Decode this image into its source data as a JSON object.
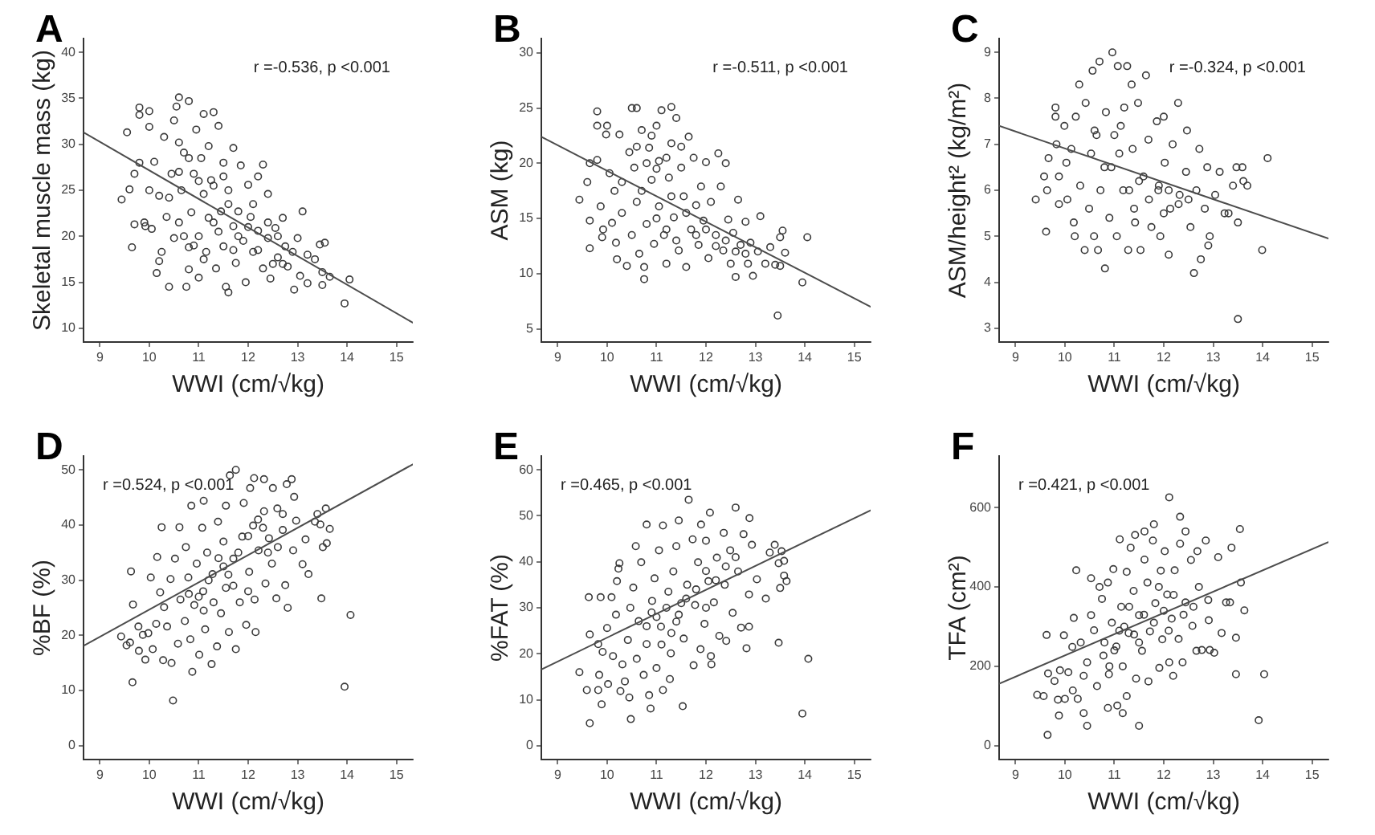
{
  "chart_data": [
    {
      "type": "scatter",
      "title": "A",
      "xlabel": "WWI (cm/√kg)",
      "ylabel": "Skeletal muscle mass (kg)",
      "annotations": [
        "r =-0.536, p <0.001"
      ],
      "xlim": [
        8.67,
        15.33
      ],
      "xticks": [
        9,
        10,
        11,
        12,
        13,
        14,
        15
      ],
      "ylim": [
        8.5,
        41.5
      ],
      "yticks": [
        10,
        15,
        20,
        25,
        30,
        35,
        40
      ],
      "marker": "circle",
      "series": [
        {
          "color": "#3a3a3a",
          "x": [
            9.44,
            9.55,
            9.6,
            9.65,
            9.7,
            9.7,
            9.8,
            9.8,
            9.8,
            9.9,
            9.92,
            10.0,
            10.0,
            10.0,
            10.05,
            10.1,
            10.15,
            10.2,
            10.25,
            10.2,
            10.3,
            10.35,
            10.4,
            10.4,
            10.45,
            10.5,
            10.5,
            10.55,
            10.6,
            10.6,
            10.6,
            10.65,
            10.7,
            10.75,
            10.8,
            10.8,
            10.8,
            10.85,
            10.9,
            10.95,
            11.0,
            11.0,
            11.05,
            11.1,
            11.1,
            11.15,
            11.2,
            11.25,
            11.3,
            11.3,
            11.35,
            11.4,
            11.45,
            11.5,
            11.5,
            11.55,
            11.6,
            11.6,
            11.7,
            11.7,
            11.75,
            11.8,
            11.85,
            11.9,
            11.95,
            12.0,
            12.05,
            12.1,
            12.2,
            12.2,
            12.3,
            12.3,
            12.4,
            12.4,
            12.45,
            12.55,
            12.6,
            12.7,
            12.75,
            12.8,
            12.9,
            12.93,
            13.0,
            13.05,
            13.1,
            13.2,
            13.2,
            13.35,
            13.45,
            13.5,
            13.5,
            13.55,
            13.65,
            13.95,
            14.05,
            11.2,
            11.4,
            11.6,
            11.8,
            12.0,
            12.2,
            12.4,
            12.6,
            11.3,
            11.0,
            10.8,
            10.6,
            11.5,
            12.1,
            12.7,
            12.5,
            10.7,
            10.9,
            11.1,
            11.7
          ],
          "values": [
            24.0,
            31.3,
            25.1,
            18.8,
            21.3,
            26.8,
            34.0,
            33.2,
            28.0,
            21.5,
            21.1,
            33.6,
            31.9,
            25.0,
            20.8,
            28.1,
            16.0,
            17.3,
            18.3,
            24.4,
            30.8,
            22.1,
            14.5,
            24.2,
            26.8,
            32.6,
            19.8,
            34.1,
            35.1,
            30.2,
            21.5,
            25.0,
            29.1,
            14.5,
            34.7,
            18.8,
            16.4,
            22.6,
            26.8,
            31.6,
            15.5,
            20.0,
            28.5,
            24.6,
            33.3,
            18.3,
            29.8,
            26.1,
            33.5,
            21.5,
            16.5,
            32.0,
            22.7,
            18.9,
            28.0,
            14.5,
            25.0,
            13.9,
            29.6,
            21.1,
            17.1,
            22.7,
            27.7,
            19.5,
            15.0,
            25.6,
            22.1,
            18.3,
            26.5,
            20.6,
            27.8,
            16.5,
            24.6,
            19.8,
            15.4,
            20.9,
            17.7,
            22.0,
            18.9,
            16.7,
            18.3,
            14.2,
            19.8,
            15.7,
            22.7,
            18.0,
            14.9,
            17.5,
            19.1,
            16.1,
            14.7,
            19.3,
            15.6,
            12.7,
            15.3,
            22.0,
            20.5,
            23.5,
            20.0,
            21.0,
            18.5,
            21.5,
            20.0,
            25.5,
            26.0,
            28.5,
            27.0,
            26.5,
            23.5,
            17.0,
            17.0,
            20.0,
            19.0,
            17.5,
            18.5
          ]
        },
        {
          "type": "line",
          "color": "#4d4d4d",
          "marker": "none",
          "x": [
            8.67,
            15.33
          ],
          "values": [
            31.3,
            10.6
          ]
        }
      ]
    },
    {
      "type": "scatter",
      "title": "B",
      "xlabel": "WWI (cm/√kg)",
      "ylabel": "ASM (kg)",
      "annotations": [
        "r =-0.511, p <0.001"
      ],
      "xlim": [
        8.67,
        15.33
      ],
      "xticks": [
        9,
        10,
        11,
        12,
        13,
        14,
        15
      ],
      "ylim": [
        3.8,
        31.3
      ],
      "yticks": [
        5,
        10,
        15,
        20,
        25,
        30
      ],
      "marker": "circle",
      "series": [
        {
          "color": "#3a3a3a",
          "x": [
            9.44,
            9.6,
            9.65,
            9.65,
            9.65,
            9.8,
            9.8,
            9.8,
            9.87,
            9.9,
            9.92,
            10.0,
            9.98,
            10.05,
            10.1,
            10.15,
            10.18,
            10.2,
            10.25,
            10.3,
            10.3,
            10.4,
            10.45,
            10.5,
            10.5,
            10.55,
            10.6,
            10.6,
            10.65,
            10.7,
            10.75,
            10.75,
            10.8,
            10.85,
            10.9,
            10.95,
            11.0,
            11.05,
            11.05,
            11.1,
            11.15,
            11.2,
            11.25,
            11.3,
            11.3,
            11.35,
            11.4,
            11.45,
            11.5,
            11.55,
            11.6,
            11.65,
            11.7,
            11.75,
            11.8,
            11.85,
            11.9,
            11.95,
            12.0,
            12.05,
            12.1,
            12.2,
            12.25,
            12.3,
            12.35,
            12.4,
            12.45,
            12.5,
            12.55,
            12.6,
            12.65,
            12.7,
            12.8,
            12.85,
            12.9,
            12.95,
            13.05,
            13.1,
            13.2,
            13.3,
            13.4,
            13.45,
            13.5,
            13.5,
            13.55,
            13.6,
            13.95,
            14.05,
            11.2,
            11.4,
            11.6,
            11.8,
            12.0,
            12.2,
            12.4,
            11.0,
            11.2,
            10.8,
            11.5,
            11.3,
            10.6,
            10.9,
            12.6,
            12.8,
            11.0,
            10.7
          ],
          "values": [
            16.7,
            18.3,
            12.3,
            14.8,
            20.0,
            24.7,
            23.4,
            20.3,
            16.1,
            13.3,
            14.0,
            23.4,
            22.6,
            19.1,
            14.6,
            17.5,
            12.8,
            11.3,
            22.6,
            18.3,
            15.5,
            10.7,
            21.0,
            25.0,
            13.5,
            19.6,
            25.0,
            16.5,
            11.8,
            23.0,
            9.5,
            10.6,
            14.5,
            21.4,
            18.5,
            12.7,
            23.4,
            20.2,
            16.1,
            24.8,
            13.5,
            10.9,
            18.7,
            25.1,
            21.8,
            15.1,
            24.1,
            12.1,
            19.6,
            17.0,
            10.6,
            22.4,
            14.0,
            20.5,
            16.2,
            12.6,
            17.9,
            14.8,
            20.1,
            11.4,
            16.5,
            13.5,
            20.9,
            17.9,
            12.1,
            20.0,
            14.9,
            10.9,
            13.7,
            9.7,
            16.7,
            12.6,
            14.7,
            10.9,
            12.8,
            9.8,
            12.0,
            15.2,
            10.9,
            12.4,
            10.8,
            6.2,
            10.7,
            13.3,
            13.9,
            11.9,
            9.2,
            13.3,
            14.0,
            13.0,
            15.5,
            13.5,
            14.0,
            12.5,
            13.0,
            19.5,
            20.5,
            20.0,
            21.5,
            17.0,
            21.5,
            22.5,
            12.0,
            11.8,
            15.0,
            17.5
          ]
        },
        {
          "type": "line",
          "color": "#4d4d4d",
          "marker": "none",
          "x": [
            8.67,
            15.33
          ],
          "values": [
            22.4,
            7.0
          ]
        }
      ]
    },
    {
      "type": "scatter",
      "title": "C",
      "xlabel": "WWI (cm/√kg)",
      "ylabel": "ASM/height² (kg/m²)",
      "annotations": [
        "r =-0.324, p <0.001"
      ],
      "xlim": [
        8.67,
        15.33
      ],
      "xticks": [
        9,
        10,
        11,
        12,
        13,
        14,
        15
      ],
      "ylim": [
        2.7,
        9.3
      ],
      "yticks": [
        3,
        4,
        5,
        6,
        7,
        8,
        9
      ],
      "marker": "circle",
      "series": [
        {
          "color": "#3a3a3a",
          "x": [
            9.41,
            9.58,
            9.62,
            9.64,
            9.67,
            9.81,
            9.81,
            9.83,
            9.88,
            9.88,
            9.99,
            10.03,
            10.05,
            10.13,
            10.18,
            10.2,
            10.22,
            10.29,
            10.31,
            10.4,
            10.42,
            10.49,
            10.53,
            10.56,
            10.59,
            10.64,
            10.67,
            10.7,
            10.72,
            10.81,
            10.83,
            10.9,
            10.96,
            10.94,
            11.07,
            11.05,
            11.13,
            11.18,
            11.26,
            11.28,
            11.35,
            11.37,
            11.42,
            11.48,
            11.53,
            11.64,
            11.59,
            11.69,
            11.75,
            11.86,
            11.89,
            11.93,
            12.0,
            12.02,
            12.1,
            12.13,
            12.18,
            12.29,
            12.32,
            12.45,
            12.47,
            12.54,
            12.61,
            12.66,
            12.72,
            12.75,
            12.83,
            12.9,
            12.88,
            12.93,
            13.04,
            13.13,
            13.23,
            13.31,
            13.4,
            13.47,
            13.5,
            13.5,
            13.61,
            13.69,
            13.59,
            13.99,
            14.1,
            11.3,
            11.5,
            11.7,
            11.9,
            12.1,
            12.3,
            11.1,
            11.0,
            10.8,
            11.4,
            12.0,
            12.5,
            10.6,
            11.2
          ],
          "values": [
            5.8,
            6.3,
            5.1,
            6.0,
            6.7,
            7.8,
            7.6,
            7.0,
            5.7,
            6.3,
            7.4,
            6.6,
            5.8,
            6.9,
            5.3,
            5.0,
            7.6,
            8.3,
            6.1,
            4.7,
            7.9,
            5.6,
            6.8,
            8.6,
            5.0,
            7.2,
            4.7,
            8.8,
            6.0,
            4.3,
            7.7,
            5.4,
            9.0,
            6.5,
            8.7,
            5.0,
            7.4,
            6.0,
            8.7,
            4.7,
            8.3,
            6.9,
            5.3,
            7.9,
            4.7,
            8.5,
            6.3,
            7.1,
            5.2,
            7.5,
            6.0,
            5.0,
            7.6,
            6.6,
            4.6,
            5.6,
            7.0,
            7.9,
            5.9,
            6.4,
            7.3,
            5.2,
            4.2,
            6.0,
            6.9,
            4.5,
            5.6,
            4.8,
            6.5,
            5.0,
            5.9,
            6.4,
            5.5,
            5.5,
            6.1,
            6.5,
            5.3,
            3.2,
            6.2,
            6.1,
            6.5,
            4.7,
            6.7,
            6.0,
            6.2,
            5.8,
            6.1,
            6.0,
            5.7,
            6.8,
            7.2,
            6.5,
            5.6,
            5.5,
            5.8,
            7.3,
            7.8
          ]
        },
        {
          "type": "line",
          "color": "#4d4d4d",
          "marker": "none",
          "x": [
            8.67,
            15.33
          ],
          "values": [
            7.4,
            4.95
          ]
        }
      ]
    },
    {
      "type": "scatter",
      "title": "D",
      "xlabel": "WWI (cm/√kg)",
      "ylabel": "%BF (%)",
      "annotations": [
        "r =0.524, p <0.001"
      ],
      "xlim": [
        8.67,
        15.33
      ],
      "xticks": [
        9,
        10,
        11,
        12,
        13,
        14,
        15
      ],
      "ylim": [
        -2.5,
        52.5
      ],
      "yticks": [
        0,
        10,
        20,
        30,
        40,
        50
      ],
      "marker": "circle",
      "series": [
        {
          "color": "#3a3a3a",
          "x": [
            9.43,
            9.54,
            9.63,
            9.67,
            9.66,
            9.61,
            9.78,
            9.79,
            9.87,
            9.92,
            10.03,
            9.98,
            10.07,
            10.14,
            10.16,
            10.22,
            10.25,
            10.28,
            10.3,
            10.36,
            10.43,
            10.45,
            10.48,
            10.52,
            10.58,
            10.61,
            10.63,
            10.72,
            10.74,
            10.87,
            10.79,
            10.85,
            10.83,
            10.91,
            10.96,
            11.01,
            11.07,
            11.09,
            11.13,
            11.17,
            11.26,
            11.1,
            11.28,
            11.37,
            11.39,
            11.45,
            11.5,
            11.55,
            11.55,
            11.61,
            11.63,
            11.7,
            11.75,
            11.75,
            11.83,
            11.88,
            11.91,
            11.96,
            12.02,
            12.04,
            12.1,
            12.13,
            12.12,
            12.21,
            12.15,
            12.32,
            12.32,
            12.35,
            12.42,
            12.5,
            12.48,
            12.57,
            12.59,
            12.7,
            12.75,
            12.8,
            12.78,
            12.88,
            12.91,
            12.93,
            12.97,
            13.1,
            13.16,
            13.22,
            13.35,
            13.4,
            13.48,
            13.46,
            13.51,
            13.57,
            13.65,
            13.59,
            13.95,
            14.07,
            11.2,
            11.4,
            11.6,
            11.8,
            12.0,
            12.2,
            11.0,
            11.3,
            11.5,
            11.7,
            12.4,
            12.6,
            10.8,
            11.1,
            12.0,
            12.3,
            12.7
          ],
          "values": [
            19.8,
            18.2,
            31.6,
            25.6,
            11.5,
            18.7,
            21.6,
            17.2,
            20.1,
            15.6,
            30.5,
            20.4,
            17.5,
            22.1,
            34.2,
            27.8,
            39.6,
            15.5,
            25.1,
            21.6,
            30.2,
            15.0,
            8.2,
            33.9,
            18.5,
            39.6,
            26.5,
            22.6,
            36.0,
            13.4,
            30.5,
            43.5,
            19.3,
            25.5,
            33.0,
            16.5,
            39.5,
            28.0,
            21.1,
            35.0,
            14.8,
            44.4,
            31.1,
            18.0,
            40.6,
            24.0,
            37.0,
            43.5,
            28.6,
            20.6,
            49.0,
            33.9,
            17.5,
            50.0,
            26.0,
            37.9,
            44.0,
            21.9,
            31.5,
            46.7,
            39.9,
            26.5,
            48.5,
            35.4,
            20.6,
            48.3,
            42.5,
            29.4,
            37.6,
            46.7,
            33.0,
            26.7,
            43.0,
            39.1,
            29.1,
            25.0,
            47.4,
            48.3,
            35.4,
            45.1,
            40.8,
            32.9,
            37.4,
            31.1,
            40.6,
            42.0,
            26.7,
            40.1,
            36.0,
            43.0,
            39.3,
            36.7,
            10.7,
            23.7,
            30.0,
            34.0,
            31.0,
            35.0,
            38.0,
            41.0,
            27.0,
            26.0,
            32.5,
            29.0,
            35.0,
            36.0,
            27.5,
            24.5,
            28.0,
            39.5,
            42.0
          ]
        },
        {
          "type": "line",
          "color": "#4d4d4d",
          "marker": "none",
          "x": [
            8.67,
            15.33
          ],
          "values": [
            18.1,
            51.0
          ]
        }
      ]
    },
    {
      "type": "scatter",
      "title": "E",
      "xlabel": "WWI (cm/√kg)",
      "ylabel": "%FAT (%)",
      "annotations": [
        "r =0.465, p <0.001"
      ],
      "xlim": [
        8.67,
        15.33
      ],
      "xticks": [
        9,
        10,
        11,
        12,
        13,
        14,
        15
      ],
      "ylim": [
        -3,
        63
      ],
      "yticks": [
        0,
        10,
        20,
        30,
        40,
        50,
        60
      ],
      "marker": "circle",
      "series": [
        {
          "color": "#3a3a3a",
          "x": [
            9.44,
            9.59,
            9.63,
            9.65,
            9.65,
            9.82,
            9.84,
            9.82,
            9.89,
            9.91,
            9.87,
            10.0,
            10.02,
            10.09,
            10.12,
            10.18,
            10.23,
            10.25,
            10.27,
            10.2,
            10.31,
            10.36,
            10.42,
            10.45,
            10.48,
            10.47,
            10.53,
            10.58,
            10.6,
            10.64,
            10.69,
            10.74,
            10.8,
            10.8,
            10.85,
            10.88,
            10.91,
            10.96,
            11.0,
            11.05,
            11.09,
            11.13,
            11.13,
            11.24,
            11.29,
            11.34,
            11.27,
            11.4,
            11.45,
            11.45,
            11.53,
            11.55,
            11.62,
            11.65,
            11.73,
            11.75,
            11.78,
            11.84,
            11.89,
            11.9,
            11.97,
            12.0,
            12.05,
            12.08,
            12.1,
            12.11,
            12.16,
            12.22,
            12.27,
            12.36,
            12.38,
            12.41,
            12.49,
            12.54,
            12.6,
            12.65,
            12.71,
            12.76,
            12.82,
            12.87,
            12.88,
            12.87,
            12.93,
            13.03,
            13.21,
            13.29,
            13.39,
            13.47,
            13.47,
            13.5,
            13.53,
            13.58,
            13.58,
            13.63,
            13.95,
            14.07,
            11.2,
            11.4,
            11.6,
            11.8,
            12.0,
            12.2,
            11.0,
            10.8,
            11.3,
            12.4,
            12.6,
            11.5,
            11.1,
            10.9,
            12.0
          ],
          "values": [
            16.0,
            12.1,
            32.3,
            4.9,
            24.2,
            12.1,
            15.4,
            22.1,
            9.0,
            20.4,
            32.3,
            25.6,
            13.4,
            32.3,
            19.5,
            28.5,
            38.5,
            39.7,
            11.9,
            35.8,
            17.7,
            14.0,
            23.0,
            10.5,
            5.8,
            30.0,
            34.4,
            43.4,
            18.9,
            27.1,
            39.9,
            15.4,
            48.1,
            22.1,
            11.0,
            8.1,
            31.5,
            36.4,
            16.9,
            42.5,
            25.9,
            12.1,
            47.9,
            33.5,
            20.1,
            37.9,
            14.5,
            43.4,
            28.5,
            49.0,
            8.6,
            23.3,
            35.0,
            53.5,
            44.9,
            17.5,
            30.6,
            39.9,
            21.0,
            48.1,
            26.5,
            44.6,
            35.8,
            50.7,
            19.5,
            17.7,
            31.2,
            40.9,
            23.9,
            46.3,
            35.0,
            22.8,
            42.5,
            28.9,
            51.8,
            37.9,
            25.7,
            46.0,
            21.2,
            32.9,
            49.5,
            25.9,
            43.7,
            36.2,
            32.0,
            42.0,
            43.7,
            39.7,
            22.4,
            34.3,
            42.3,
            40.2,
            37.0,
            35.8,
            7.0,
            18.9,
            30.0,
            27.0,
            32.0,
            34.0,
            38.0,
            36.0,
            28.0,
            26.0,
            24.5,
            39.0,
            41.0,
            31.0,
            22.0,
            29.0,
            30.0
          ]
        },
        {
          "type": "line",
          "color": "#4d4d4d",
          "marker": "none",
          "x": [
            8.67,
            15.33
          ],
          "values": [
            16.6,
            51.2
          ]
        }
      ]
    },
    {
      "type": "scatter",
      "title": "F",
      "xlabel": "WWI (cm/√kg)",
      "ylabel": "TFA (cm²)",
      "annotations": [
        "r =0.421, p <0.001"
      ],
      "xlim": [
        8.67,
        15.33
      ],
      "xticks": [
        9,
        10,
        11,
        12,
        13,
        14,
        15
      ],
      "ylim": [
        -35,
        730
      ],
      "yticks": [
        0,
        200,
        400,
        600
      ],
      "marker": "circle",
      "series": [
        {
          "color": "#3a3a3a",
          "x": [
            9.44,
            9.57,
            9.63,
            9.65,
            9.66,
            9.79,
            9.86,
            9.88,
            9.9,
            9.98,
            10.0,
            10.07,
            10.15,
            10.16,
            10.18,
            10.23,
            10.26,
            10.32,
            10.38,
            10.38,
            10.45,
            10.45,
            10.53,
            10.53,
            10.59,
            10.65,
            10.7,
            10.78,
            10.75,
            10.87,
            10.89,
            10.87,
            10.95,
            10.98,
            11.06,
            11.04,
            11.11,
            11.14,
            11.17,
            11.17,
            11.25,
            11.29,
            11.25,
            11.33,
            11.39,
            11.44,
            11.42,
            11.5,
            11.5,
            11.56,
            11.61,
            11.61,
            11.67,
            11.69,
            11.72,
            11.78,
            11.83,
            11.8,
            11.91,
            11.94,
            11.97,
            12.02,
            12.07,
            12.11,
            12.11,
            12.16,
            12.22,
            12.19,
            12.3,
            12.33,
            12.33,
            12.38,
            12.44,
            12.44,
            12.55,
            12.58,
            12.66,
            12.68,
            12.71,
            12.77,
            12.85,
            12.9,
            12.91,
            12.93,
            13.02,
            13.1,
            13.17,
            13.26,
            13.37,
            13.34,
            13.46,
            13.46,
            13.54,
            13.56,
            13.63,
            13.92,
            14.03,
            11.2,
            11.4,
            11.6,
            11.8,
            12.0,
            12.2,
            11.0,
            10.8,
            11.3,
            11.9,
            12.4,
            12.6,
            11.5,
            11.1,
            10.9,
            12.1
          ],
          "values": [
            128,
            125,
            279,
            27,
            182,
            163,
            116,
            76,
            190,
            278,
            118,
            185,
            249,
            139,
            322,
            442,
            118,
            260,
            176,
            82,
            50,
            210,
            422,
            329,
            291,
            150,
            400,
            227,
            370,
            411,
            180,
            95,
            310,
            445,
            101,
            250,
            520,
            350,
            82,
            200,
            438,
            284,
            125,
            499,
            390,
            169,
            531,
            329,
            50,
            239,
            469,
            540,
            411,
            162,
            288,
            517,
            359,
            558,
            196,
            441,
            268,
            490,
            381,
            626,
            210,
            320,
            442,
            176,
            269,
            577,
            509,
            210,
            540,
            361,
            468,
            302,
            239,
            490,
            400,
            241,
            517,
            367,
            316,
            241,
            234,
            475,
            284,
            361,
            499,
            361,
            272,
            180,
            546,
            411,
            341,
            64,
            180,
            300,
            280,
            330,
            310,
            340,
            380,
            240,
            260,
            350,
            400,
            330,
            350,
            260,
            290,
            200,
            290
          ]
        },
        {
          "type": "line",
          "color": "#4d4d4d",
          "marker": "none",
          "x": [
            8.67,
            15.33
          ],
          "values": [
            156,
            513
          ]
        }
      ]
    }
  ]
}
